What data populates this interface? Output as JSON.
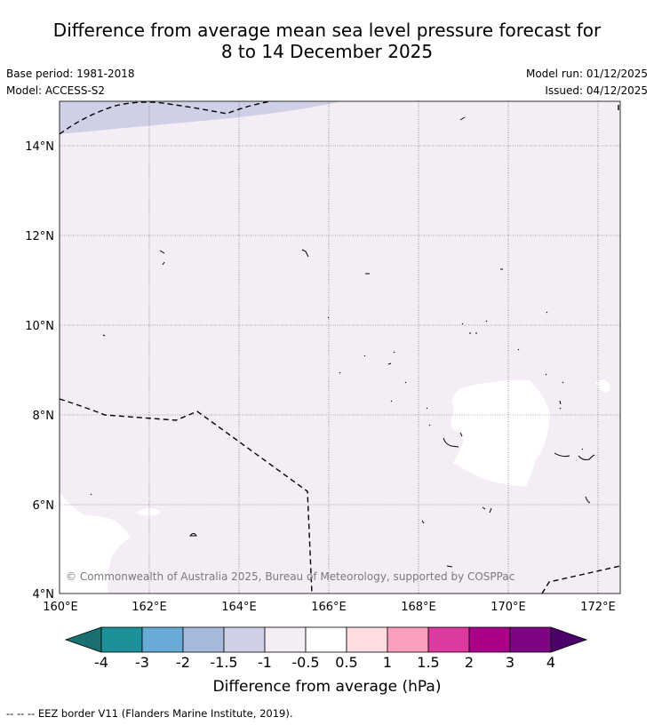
{
  "title": {
    "line1": "Difference from average mean sea level pressure forecast for",
    "line2": "8 to 14 December 2025"
  },
  "meta_left": {
    "base_period": "Base period: 1981-2018",
    "model": "Model: ACCESS-S2"
  },
  "meta_right": {
    "model_run": "Model run: 01/12/2025",
    "issued": "Issued: 04/12/2025"
  },
  "map": {
    "lat_labels": [
      "14°N",
      "12°N",
      "10°N",
      "8°N",
      "6°N",
      "4°N"
    ],
    "lon_labels": [
      "160°E",
      "162°E",
      "164°E",
      "166°E",
      "168°E",
      "170°E",
      "172°E"
    ],
    "copyright": "© Commonwealth of Australia 2025, Bureau of Meteorology, supported by COSPPac",
    "colors": {
      "background_band": "#f4edf5",
      "negative_band": "#cfd0e5",
      "neutral_band": "#ffffff"
    }
  },
  "colorbar": {
    "ticks": [
      "-4",
      "-3",
      "-2",
      "-1.5",
      "-1",
      "-0.5",
      "0.5",
      "1",
      "1.5",
      "2",
      "3",
      "4"
    ],
    "colors": [
      "#1a7070",
      "#1c9098",
      "#67abd6",
      "#a7b9da",
      "#cfd0e5",
      "#f4edf5",
      "#ffffff",
      "#fedde0",
      "#f99fbb",
      "#dc3a9f",
      "#ab0088",
      "#7e0582",
      "#4b006a"
    ],
    "label": "Difference from average (hPa)"
  },
  "footer": "--  --  -- EEZ border V11 (Flanders Marine Institute, 2019)."
}
